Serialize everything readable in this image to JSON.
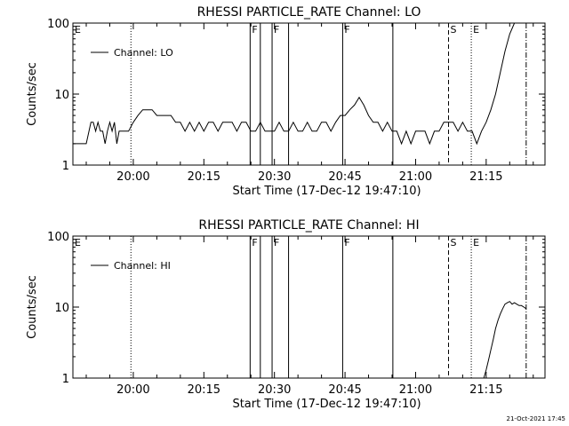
{
  "footer_timestamp": "21-Oct-2021 17:45",
  "chart_data": [
    {
      "type": "line",
      "title": "RHESSI PARTICLE_RATE Channel: LO",
      "xlabel": "Start Time (17-Dec-12 19:47:10)",
      "ylabel": "Counts/sec",
      "yscale": "log",
      "ylim": [
        1,
        100
      ],
      "xlim": [
        "19:47:10",
        "21:27:30"
      ],
      "xticks": [
        "20:00",
        "20:15",
        "20:30",
        "20:45",
        "21:00",
        "21:15"
      ],
      "yticks": [
        "1",
        "10",
        "100"
      ],
      "legend": {
        "position": "top-left"
      },
      "series": [
        {
          "name": "Channel: LO",
          "x": [
            "19:47:10",
            "19:48",
            "19:49",
            "19:50",
            "19:51",
            "19:51:30",
            "19:52",
            "19:52:30",
            "19:53",
            "19:53:30",
            "19:54",
            "19:54:30",
            "19:55",
            "19:55:30",
            "19:56",
            "19:56:30",
            "19:57",
            "19:58",
            "19:59",
            "20:00",
            "20:01",
            "20:02",
            "20:03",
            "20:04",
            "20:05",
            "20:06",
            "20:07",
            "20:08",
            "20:09",
            "20:10",
            "20:11",
            "20:12",
            "20:13",
            "20:14",
            "20:15",
            "20:16",
            "20:17",
            "20:18",
            "20:19",
            "20:20",
            "20:21",
            "20:22",
            "20:23",
            "20:24",
            "20:25",
            "20:26",
            "20:27",
            "20:28",
            "20:29",
            "20:30",
            "20:31",
            "20:32",
            "20:33",
            "20:34",
            "20:35",
            "20:36",
            "20:37",
            "20:38",
            "20:39",
            "20:40",
            "20:41",
            "20:42",
            "20:43",
            "20:44",
            "20:45",
            "20:46",
            "20:47",
            "20:48",
            "20:49",
            "20:50",
            "20:51",
            "20:52",
            "20:53",
            "20:54",
            "20:55",
            "20:56",
            "20:57",
            "20:58",
            "20:59",
            "21:00",
            "21:01",
            "21:02",
            "21:03",
            "21:04",
            "21:05",
            "21:06",
            "21:07",
            "21:08",
            "21:09",
            "21:10",
            "21:11",
            "21:12",
            "21:13",
            "21:14",
            "21:15",
            "21:16",
            "21:17",
            "21:18",
            "21:19",
            "21:20",
            "21:21",
            "21:22",
            "21:23"
          ],
          "y": [
            2,
            2,
            2,
            2,
            4,
            4,
            3,
            4,
            3,
            3,
            2,
            3,
            4,
            3,
            4,
            2,
            3,
            3,
            3,
            4,
            5,
            6,
            6,
            6,
            5,
            5,
            5,
            5,
            4,
            4,
            3,
            4,
            3,
            4,
            3,
            4,
            4,
            3,
            4,
            4,
            4,
            3,
            4,
            4,
            3,
            3,
            4,
            3,
            3,
            3,
            4,
            3,
            3,
            4,
            3,
            3,
            4,
            3,
            3,
            4,
            4,
            3,
            4,
            5,
            5,
            6,
            7,
            9,
            7,
            5,
            4,
            4,
            3,
            4,
            3,
            3,
            2,
            3,
            2,
            3,
            3,
            3,
            2,
            3,
            3,
            4,
            4,
            4,
            3,
            4,
            3,
            3,
            2,
            3,
            4,
            6,
            10,
            20,
            40,
            70,
            100,
            100,
            100
          ]
        }
      ],
      "markers": [
        {
          "x": "19:47:10",
          "label": "E",
          "style": "solid"
        },
        {
          "x": "19:59:30",
          "label": "",
          "style": "dotted"
        },
        {
          "x": "20:24:50",
          "label": "F",
          "style": "solid"
        },
        {
          "x": "20:27:00",
          "label": "",
          "style": "solid"
        },
        {
          "x": "20:29:30",
          "label": "F",
          "style": "solid"
        },
        {
          "x": "20:33:00",
          "label": "",
          "style": "solid"
        },
        {
          "x": "20:44:30",
          "label": "F",
          "style": "solid"
        },
        {
          "x": "20:55:10",
          "label": "",
          "style": "solid"
        },
        {
          "x": "21:07:00",
          "label": "S",
          "style": "dashed"
        },
        {
          "x": "21:11:50",
          "label": "E",
          "style": "dotted"
        },
        {
          "x": "21:23:30",
          "label": "",
          "style": "dashdot"
        }
      ]
    },
    {
      "type": "line",
      "title": "RHESSI PARTICLE_RATE Channel: HI",
      "xlabel": "Start Time (17-Dec-12 19:47:10)",
      "ylabel": "Counts/sec",
      "yscale": "log",
      "ylim": [
        1,
        100
      ],
      "xlim": [
        "19:47:10",
        "21:27:30"
      ],
      "xticks": [
        "20:00",
        "20:15",
        "20:30",
        "20:45",
        "21:00",
        "21:15"
      ],
      "yticks": [
        "1",
        "10",
        "100"
      ],
      "legend": {
        "position": "top-left"
      },
      "series": [
        {
          "name": "Channel: HI",
          "x": [
            "21:14:30",
            "21:15",
            "21:15:30",
            "21:16",
            "21:16:30",
            "21:17",
            "21:17:30",
            "21:18",
            "21:18:30",
            "21:19",
            "21:19:30",
            "21:20",
            "21:20:30",
            "21:21",
            "21:21:30",
            "21:22",
            "21:22:30",
            "21:23",
            "21:23:30"
          ],
          "y": [
            1,
            1.3,
            1.8,
            2.5,
            3.5,
            5,
            6.5,
            8,
            9.5,
            11,
            11.5,
            12,
            11,
            11.5,
            11,
            10.5,
            10.5,
            10,
            9.5
          ]
        }
      ],
      "markers": [
        {
          "x": "19:47:10",
          "label": "E",
          "style": "solid"
        },
        {
          "x": "19:59:30",
          "label": "",
          "style": "dotted"
        },
        {
          "x": "20:24:50",
          "label": "F",
          "style": "solid"
        },
        {
          "x": "20:27:00",
          "label": "",
          "style": "solid"
        },
        {
          "x": "20:29:30",
          "label": "F",
          "style": "solid"
        },
        {
          "x": "20:33:00",
          "label": "",
          "style": "solid"
        },
        {
          "x": "20:44:30",
          "label": "F",
          "style": "solid"
        },
        {
          "x": "20:55:10",
          "label": "",
          "style": "solid"
        },
        {
          "x": "21:07:00",
          "label": "S",
          "style": "dashed"
        },
        {
          "x": "21:11:50",
          "label": "E",
          "style": "dotted"
        },
        {
          "x": "21:23:30",
          "label": "",
          "style": "dashdot"
        }
      ]
    }
  ]
}
